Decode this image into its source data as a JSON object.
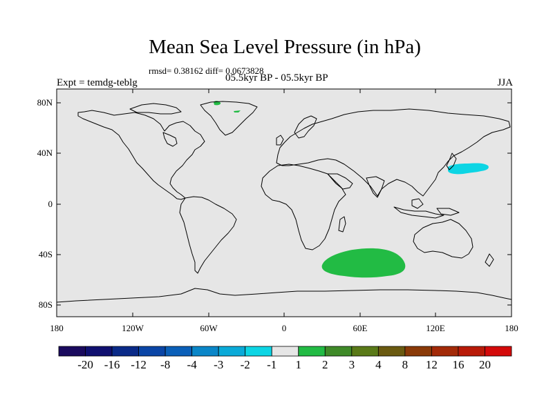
{
  "title": "Mean Sea Level Pressure (in hPa)",
  "stats": "rmsd= 0.38162 diff= 0.0673828",
  "subtitle": "05.5kyr BP - 05.5kyr BP",
  "left_label": "Expt = temdg-teblg",
  "right_label": "JJA",
  "chart_data": {
    "type": "heatmap",
    "projection": "cylindrical-equidistant",
    "lat_range": [
      -90,
      90
    ],
    "lon_range": [
      -180,
      180
    ],
    "lat_ticks": [
      "80N",
      "40N",
      "0",
      "40S",
      "80S"
    ],
    "lon_ticks": [
      "180",
      "120W",
      "60W",
      "0",
      "60E",
      "120E",
      "180"
    ],
    "regions": [
      {
        "name": "Southern Indian Ocean",
        "level": "1 to 2",
        "color": "#22bb44",
        "center_lon": 65,
        "center_lat": -47
      },
      {
        "name": "Northwest Pacific",
        "level": "-2 to -1",
        "color": "#0dd5e4",
        "center_lon": 152,
        "center_lat": 30
      },
      {
        "name": "Greenland",
        "level": "1 to 2",
        "color": "#22bb44",
        "center_lon": -52,
        "center_lat": 83
      },
      {
        "name": "Greenland interior",
        "level": "1 to 2",
        "color": "#22bb44",
        "center_lon": -38,
        "center_lat": 76
      }
    ],
    "colorbar": {
      "labels": [
        "-20",
        "-16",
        "-12",
        "-8",
        "-4",
        "-3",
        "-2",
        "-1",
        "1",
        "2",
        "3",
        "4",
        "8",
        "12",
        "16",
        "20"
      ],
      "colors": [
        "#1a0a5e",
        "#101070",
        "#0a2a88",
        "#0a45a6",
        "#0a5fb8",
        "#0a86c8",
        "#0aaad8",
        "#0dd5e4",
        "#e6e6e6",
        "#22bb44",
        "#3f8a28",
        "#5a7a18",
        "#6a5a10",
        "#8a3a08",
        "#a32a08",
        "#b81a08",
        "#d40a0a"
      ]
    }
  }
}
